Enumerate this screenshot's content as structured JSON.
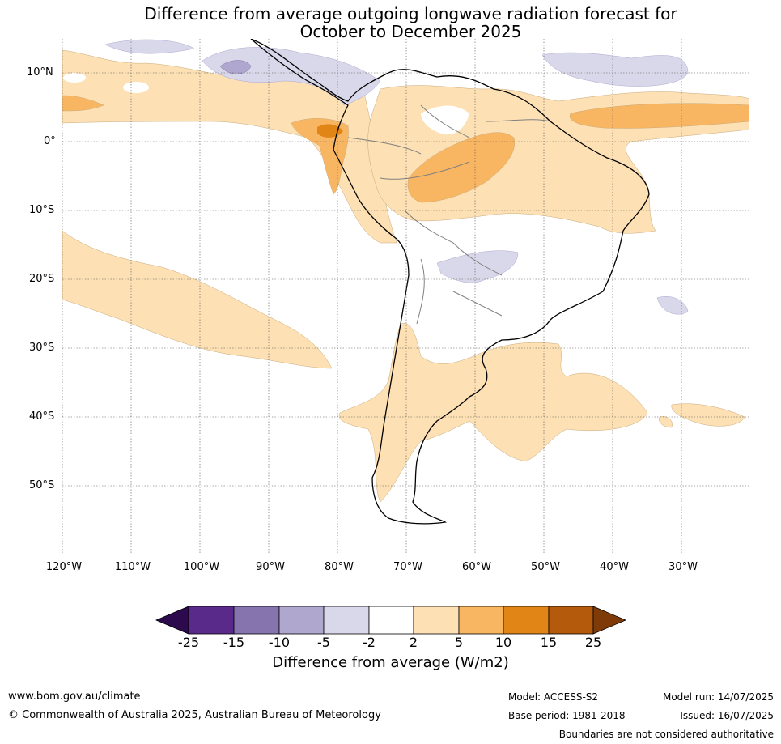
{
  "title": {
    "line1": "Difference from average outgoing longwave radiation forecast for",
    "line2": "October to December 2025"
  },
  "map": {
    "lat_labels": [
      "10°N",
      "0°",
      "10°S",
      "20°S",
      "30°S",
      "40°S",
      "50°S"
    ],
    "lon_labels": [
      "120°W",
      "110°W",
      "100°W",
      "90°W",
      "80°W",
      "70°W",
      "60°W",
      "50°W",
      "40°W",
      "30°W"
    ],
    "region": "South America"
  },
  "colorbar": {
    "ticks": [
      "-25",
      "-15",
      "-10",
      "-5",
      "-2",
      "2",
      "5",
      "10",
      "15",
      "25"
    ],
    "colors": [
      "#2d0a4e",
      "#5a2a8a",
      "#8574ad",
      "#b0a7cf",
      "#d8d8ea",
      "#ffffff",
      "#fde0b3",
      "#f9b662",
      "#e08516",
      "#b35a0c",
      "#7f3b07"
    ],
    "label": "Difference from average (W/m2)"
  },
  "footer": {
    "website": "www.bom.gov.au/climate",
    "copyright": "© Commonwealth of Australia 2025, Australian Bureau of Meteorology",
    "model": "Model: ACCESS-S2",
    "model_run": "Model run: 14/07/2025",
    "base_period": "Base period: 1981-2018",
    "issued": "Issued: 16/07/2025",
    "disclaimer": "Boundaries are not considered authoritative"
  }
}
